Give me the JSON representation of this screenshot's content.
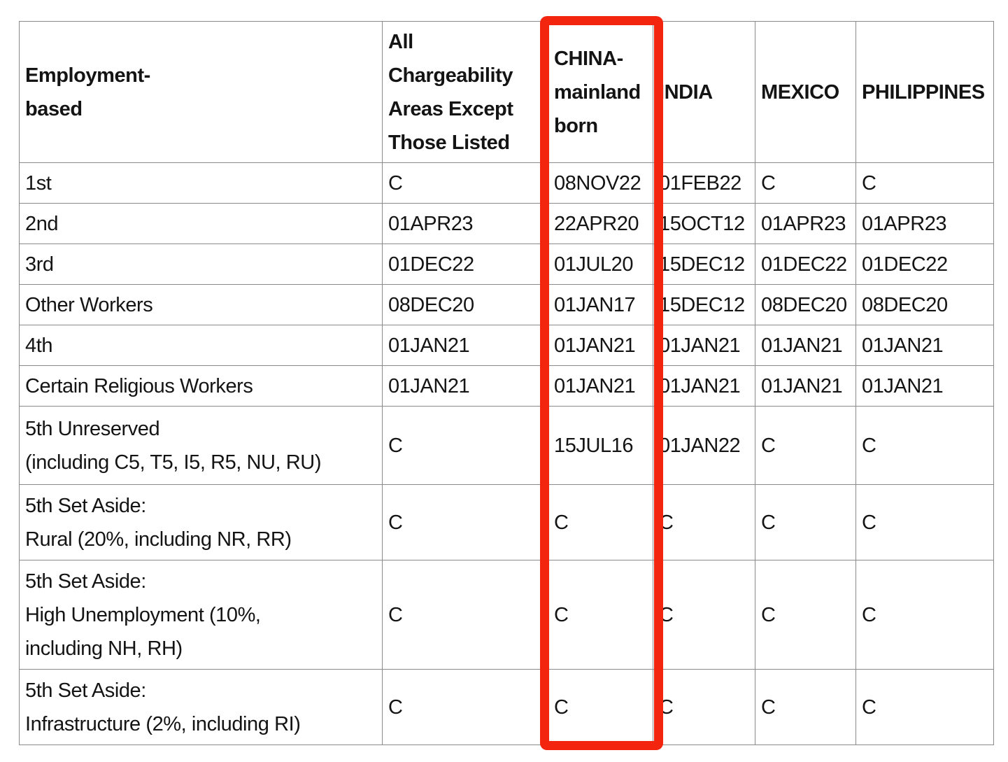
{
  "colors": {
    "highlight_box": "#f4250f",
    "table_border": "#8a8a8a",
    "text": "#141414"
  },
  "table": {
    "columns": [
      {
        "key": "category",
        "label": "Employment-\nbased"
      },
      {
        "key": "all",
        "label": "All\nChargeability\nAreas Except\nThose Listed"
      },
      {
        "key": "china",
        "label": "CHINA-\nmainland\nborn",
        "highlighted": true
      },
      {
        "key": "india",
        "label": "INDIA"
      },
      {
        "key": "mexico",
        "label": "MEXICO"
      },
      {
        "key": "philippines",
        "label": "PHILIPPINES"
      }
    ],
    "rows": [
      {
        "category": "1st",
        "all": "C",
        "china": "08NOV22",
        "india": "01FEB22",
        "mexico": "C",
        "philippines": "C"
      },
      {
        "category": "2nd",
        "all": "01APR23",
        "china": "22APR20",
        "india": "15OCT12",
        "mexico": "01APR23",
        "philippines": "01APR23"
      },
      {
        "category": "3rd",
        "all": "01DEC22",
        "china": "01JUL20",
        "india": "15DEC12",
        "mexico": "01DEC22",
        "philippines": "01DEC22"
      },
      {
        "category": "Other Workers",
        "all": "08DEC20",
        "china": "01JAN17",
        "india": "15DEC12",
        "mexico": "08DEC20",
        "philippines": "08DEC20"
      },
      {
        "category": "4th",
        "all": "01JAN21",
        "china": "01JAN21",
        "india": "01JAN21",
        "mexico": "01JAN21",
        "philippines": "01JAN21"
      },
      {
        "category": "Certain Religious Workers",
        "all": "01JAN21",
        "china": "01JAN21",
        "india": "01JAN21",
        "mexico": "01JAN21",
        "philippines": "01JAN21"
      },
      {
        "category": "5th Unreserved\n(including C5, T5, I5, R5, NU, RU)",
        "all": "C",
        "china": "15JUL16",
        "india": "01JAN22",
        "mexico": "C",
        "philippines": "C"
      },
      {
        "category": "5th Set Aside:\nRural (20%, including NR, RR)",
        "all": "C",
        "china": "C",
        "india": "C",
        "mexico": "C",
        "philippines": "C"
      },
      {
        "category": "5th Set Aside:\nHigh Unemployment (10%,\nincluding NH, RH)",
        "all": "C",
        "china": "C",
        "india": "C",
        "mexico": "C",
        "philippines": "C"
      },
      {
        "category": "5th Set Aside:\nInfrastructure (2%, including RI)",
        "all": "C",
        "china": "C",
        "india": "C",
        "mexico": "C",
        "philippines": "C"
      }
    ]
  },
  "annotation": {
    "type": "highlight-rectangle",
    "target_column": "CHINA-mainland born"
  }
}
